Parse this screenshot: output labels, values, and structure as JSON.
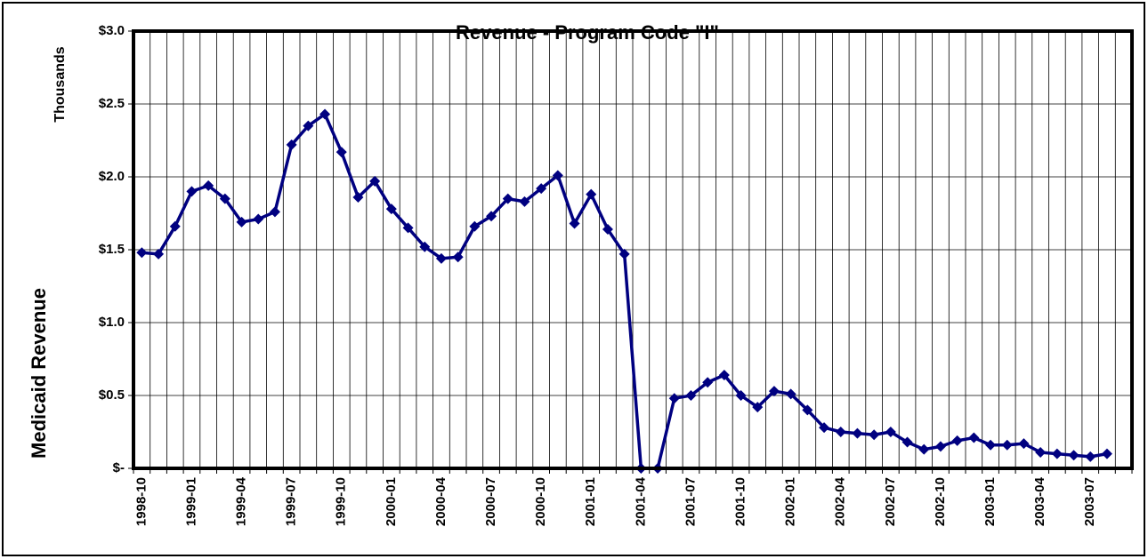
{
  "chart_data": {
    "type": "line",
    "title": "Revenue - Program Code \"I\"",
    "y_unit_label": "Thousands",
    "y_axis_label": "Medicaid Revenue",
    "categories": [
      "1998-10",
      null,
      null,
      "1999-01",
      null,
      null,
      "1999-04",
      null,
      null,
      "1999-07",
      null,
      null,
      "1999-10",
      null,
      null,
      "2000-01",
      null,
      null,
      "2000-04",
      null,
      null,
      "2000-07",
      null,
      null,
      "2000-10",
      null,
      null,
      "2001-01",
      null,
      null,
      "2001-04",
      null,
      null,
      "2001-07",
      null,
      null,
      "2001-10",
      null,
      null,
      "2002-01",
      null,
      null,
      "2002-04",
      null,
      null,
      "2002-07",
      null,
      null,
      "2002-10",
      null,
      null,
      "2003-01",
      null,
      null,
      "2003-04",
      null,
      null,
      "2003-07",
      null,
      null
    ],
    "series": [
      {
        "name": "Revenue",
        "color": "#000080",
        "values": [
          1.48,
          1.47,
          1.66,
          1.9,
          1.94,
          1.85,
          1.69,
          1.71,
          1.76,
          2.22,
          2.35,
          2.43,
          2.17,
          1.86,
          1.97,
          1.78,
          1.65,
          1.52,
          1.44,
          1.45,
          1.66,
          1.73,
          1.85,
          1.83,
          1.92,
          2.01,
          1.68,
          1.88,
          1.64,
          1.47,
          0,
          0,
          0.48,
          0.5,
          0.59,
          0.64,
          0.5,
          0.42,
          0.53,
          0.51,
          0.4,
          0.28,
          0.25,
          0.24,
          0.23,
          0.25,
          0.18,
          0.13,
          0.15,
          0.19,
          0.21,
          0.16,
          0.16,
          0.17,
          0.11,
          0.1,
          0.09,
          0.08,
          0.1,
          null
        ]
      }
    ],
    "ylim": [
      0,
      3
    ],
    "yticks": [
      {
        "value": 0,
        "label": "$-"
      },
      {
        "value": 0.5,
        "label": "$0.5"
      },
      {
        "value": 1,
        "label": "$1.0"
      },
      {
        "value": 1.5,
        "label": "$1.5"
      },
      {
        "value": 2,
        "label": "$2.0"
      },
      {
        "value": 2.5,
        "label": "$2.5"
      },
      {
        "value": 3,
        "label": "$3.0"
      }
    ],
    "grid": true
  }
}
